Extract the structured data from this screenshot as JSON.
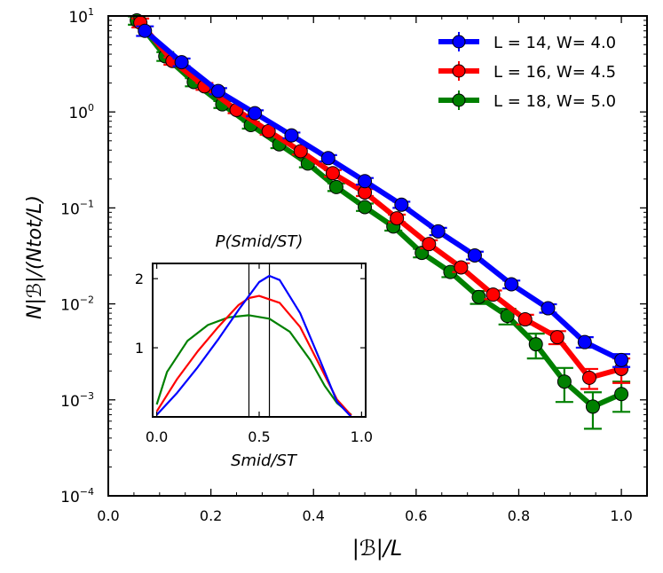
{
  "chart_data": [
    {
      "type": "line",
      "xlabel": "|ℬ|/L",
      "ylabel": "N|ℬ|/(Ntot/L)",
      "yscale": "log",
      "xlim": [
        0.0,
        1.05
      ],
      "ylim_exp": [
        -4,
        1
      ],
      "xticks": [
        "0.0",
        "0.2",
        "0.4",
        "0.6",
        "0.8",
        "1.0"
      ],
      "yticks": [
        {
          "base": "10",
          "exp": "1"
        },
        {
          "base": "10",
          "exp": "0"
        },
        {
          "base": "10",
          "exp": "−1"
        },
        {
          "base": "10",
          "exp": "−2"
        },
        {
          "base": "10",
          "exp": "−3"
        },
        {
          "base": "10",
          "exp": "−4"
        }
      ],
      "ytick_values": [
        1,
        0,
        -1,
        -2,
        -3,
        -4
      ],
      "legend_position": "top-right",
      "series": [
        {
          "name": "L = 14, W= 4.0",
          "color": "#0000ff",
          "x": [
            0.0714,
            0.1429,
            0.2143,
            0.2857,
            0.3571,
            0.4286,
            0.5,
            0.5714,
            0.6429,
            0.7143,
            0.7857,
            0.8571,
            0.9286,
            1.0
          ],
          "y": [
            7.0,
            3.3,
            1.65,
            0.97,
            0.57,
            0.33,
            0.19,
            0.108,
            0.057,
            0.032,
            0.016,
            0.009,
            0.004,
            0.0026
          ],
          "err": [
            0.8,
            0.3,
            0.12,
            0.07,
            0.04,
            0.025,
            0.015,
            0.008,
            0.005,
            0.003,
            0.0015,
            0.0009,
            0.0005,
            0.0004
          ]
        },
        {
          "name": "L = 16, W= 4.5",
          "color": "#ff0000",
          "x": [
            0.0625,
            0.125,
            0.1875,
            0.25,
            0.3125,
            0.375,
            0.4375,
            0.5,
            0.5625,
            0.625,
            0.6875,
            0.75,
            0.8125,
            0.875,
            0.9375,
            1.0
          ],
          "y": [
            8.5,
            3.4,
            1.85,
            1.05,
            0.63,
            0.39,
            0.23,
            0.145,
            0.078,
            0.042,
            0.024,
            0.0125,
            0.0069,
            0.0045,
            0.0017,
            0.0021
          ],
          "err": [
            0.9,
            0.3,
            0.15,
            0.08,
            0.05,
            0.03,
            0.018,
            0.012,
            0.007,
            0.004,
            0.0025,
            0.0013,
            0.0008,
            0.0007,
            0.0004,
            0.0006
          ]
        },
        {
          "name": "L = 18, W= 5.0",
          "color": "#008000",
          "x": [
            0.0556,
            0.1111,
            0.1667,
            0.2222,
            0.2778,
            0.3333,
            0.3889,
            0.4444,
            0.5,
            0.5556,
            0.6111,
            0.6667,
            0.7222,
            0.7778,
            0.8333,
            0.8889,
            0.9444,
            1.0
          ],
          "y": [
            9.0,
            3.8,
            2.05,
            1.2,
            0.73,
            0.46,
            0.29,
            0.165,
            0.102,
            0.064,
            0.034,
            0.0215,
            0.0118,
            0.0075,
            0.0038,
            0.00155,
            0.00085,
            0.00115
          ],
          "err": [
            0.9,
            0.4,
            0.2,
            0.1,
            0.06,
            0.04,
            0.025,
            0.015,
            0.009,
            0.006,
            0.0035,
            0.0025,
            0.0018,
            0.0014,
            0.0011,
            0.0006,
            0.00035,
            0.0004
          ]
        }
      ]
    },
    {
      "type": "line",
      "title": "P(Smid/ST)",
      "xlabel": "Smid/ST",
      "xlim": [
        -0.02,
        1.02
      ],
      "ylim": [
        0,
        2.22
      ],
      "xticks": [
        "0.0",
        "0.5",
        "1.0"
      ],
      "xtick_values": [
        0.0,
        0.5,
        1.0
      ],
      "yticks": [
        "1",
        "2"
      ],
      "ytick_values": [
        1,
        2
      ],
      "vlines": [
        0.45,
        0.55
      ],
      "series": [
        {
          "name": "L = 14, W= 4.0",
          "color": "#0000ff",
          "x": [
            0.0,
            0.1,
            0.2,
            0.3,
            0.4,
            0.5,
            0.55,
            0.6,
            0.7,
            0.8,
            0.88,
            0.95
          ],
          "y": [
            0.03,
            0.35,
            0.72,
            1.12,
            1.55,
            1.95,
            2.04,
            1.98,
            1.5,
            0.8,
            0.22,
            0.0
          ]
        },
        {
          "name": "L = 16, W= 4.5",
          "color": "#ff0000",
          "x": [
            0.0,
            0.1,
            0.2,
            0.3,
            0.4,
            0.45,
            0.5,
            0.6,
            0.7,
            0.8,
            0.88,
            0.95
          ],
          "y": [
            0.08,
            0.55,
            0.95,
            1.3,
            1.62,
            1.72,
            1.75,
            1.65,
            1.3,
            0.72,
            0.25,
            0.02
          ]
        },
        {
          "name": "L = 18, W= 5.0",
          "color": "#008000",
          "x": [
            0.0,
            0.05,
            0.15,
            0.25,
            0.35,
            0.45,
            0.55,
            0.65,
            0.75,
            0.82,
            0.88,
            0.95
          ],
          "y": [
            0.18,
            0.65,
            1.1,
            1.33,
            1.44,
            1.47,
            1.42,
            1.23,
            0.82,
            0.45,
            0.2,
            0.03
          ]
        }
      ]
    }
  ]
}
